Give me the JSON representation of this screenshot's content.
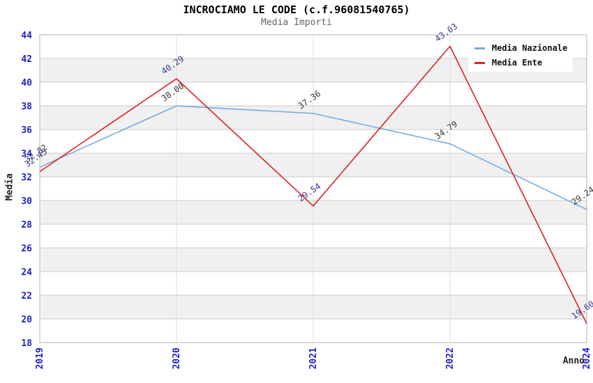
{
  "chart_data": {
    "type": "line",
    "title": "INCROCIAMO LE CODE (c.f.96081540765)",
    "subtitle": "Media Importi",
    "categories": [
      "2019",
      "2020",
      "2021",
      "2022",
      "2024"
    ],
    "series": [
      {
        "name": "Media Nazionale",
        "color": "#76ace0",
        "label_color": "#3a3a3a",
        "values": [
          32.82,
          38.0,
          37.36,
          34.79,
          29.24
        ]
      },
      {
        "name": "Media Ente",
        "color": "#dc2323",
        "label_color": "#373796",
        "values": [
          32.45,
          40.29,
          29.54,
          43.03,
          19.6
        ]
      }
    ],
    "xlabel": "Anno",
    "ylabel": "Media",
    "ylim": [
      18,
      44
    ],
    "ytick_step": 2,
    "yticks": [
      44,
      42,
      40,
      38,
      36,
      34,
      32,
      30,
      28,
      26,
      24,
      22,
      20,
      18
    ],
    "grid": true,
    "legend_position": "top-right",
    "band_colors": [
      "#ffffff",
      "#f0f0f0"
    ],
    "gridline_color": "#cccccc",
    "vgridline_color": "#dedede",
    "border_color": "#b5b5b5",
    "tick_label_color": "#2020cc",
    "axis_label_color": "#222222"
  }
}
